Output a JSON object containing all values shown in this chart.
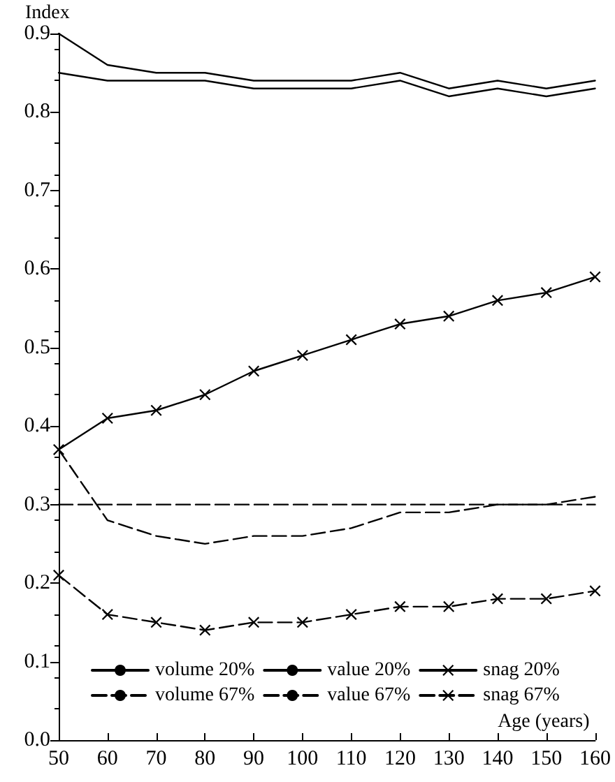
{
  "chart_data": {
    "type": "line",
    "xlabel": "Age (years)",
    "ylabel": "Index",
    "x": [
      50,
      60,
      70,
      80,
      90,
      100,
      110,
      120,
      130,
      140,
      150,
      160
    ],
    "series": [
      {
        "name": "volume 20%",
        "color": "#000000",
        "line_style": "solid",
        "marker": "none",
        "values": [
          0.85,
          0.84,
          0.84,
          0.84,
          0.83,
          0.83,
          0.83,
          0.84,
          0.82,
          0.83,
          0.82,
          0.83
        ]
      },
      {
        "name": "value 20%",
        "color": "#000000",
        "line_style": "solid",
        "marker": "none",
        "values": [
          0.9,
          0.86,
          0.85,
          0.85,
          0.84,
          0.84,
          0.84,
          0.85,
          0.83,
          0.84,
          0.83,
          0.84
        ]
      },
      {
        "name": "snag 20%",
        "color": "#000000",
        "line_style": "solid",
        "marker": "cross",
        "values": [
          0.37,
          0.41,
          0.42,
          0.44,
          0.47,
          0.49,
          0.51,
          0.53,
          0.54,
          0.56,
          0.57,
          0.59
        ]
      },
      {
        "name": "volume 67%",
        "color": "#000000",
        "line_style": "dashed",
        "marker": "none",
        "values": [
          0.3,
          0.3,
          0.3,
          0.3,
          0.3,
          0.3,
          0.3,
          0.3,
          0.3,
          0.3,
          0.3,
          0.3
        ]
      },
      {
        "name": "value 67%",
        "color": "#000000",
        "line_style": "dashed",
        "marker": "none",
        "values": [
          0.37,
          0.28,
          0.26,
          0.25,
          0.26,
          0.26,
          0.27,
          0.29,
          0.29,
          0.3,
          0.3,
          0.31
        ]
      },
      {
        "name": "snag 67%",
        "color": "#000000",
        "line_style": "dashed",
        "marker": "cross",
        "values": [
          0.21,
          0.16,
          0.15,
          0.14,
          0.15,
          0.15,
          0.16,
          0.17,
          0.17,
          0.18,
          0.18,
          0.19
        ]
      }
    ],
    "xlim": [
      50,
      160
    ],
    "xticks": [
      50,
      60,
      70,
      80,
      90,
      100,
      110,
      120,
      130,
      140,
      150,
      160
    ],
    "ylim": [
      0,
      0.9
    ],
    "yticks": [
      {
        "value": 0,
        "label": "0.0"
      },
      0.1,
      0.2,
      0.3,
      0.4,
      0.5,
      0.6,
      0.7,
      0.8,
      0.9
    ],
    "grid": false,
    "legend": "bottom"
  }
}
